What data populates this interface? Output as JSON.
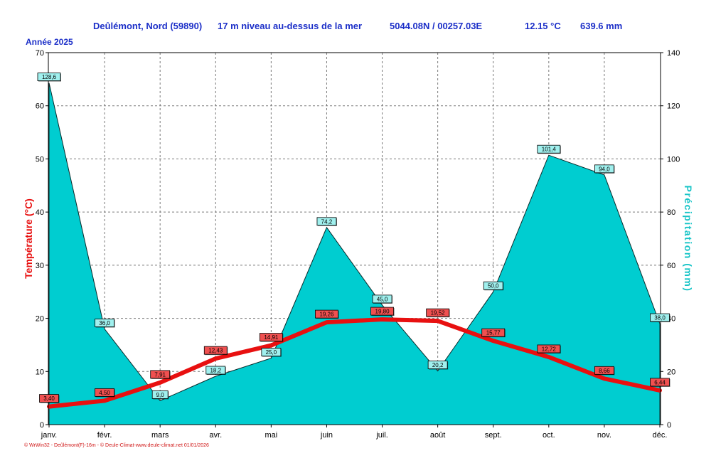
{
  "header": {
    "location": "Deûlémont, Nord (59890)",
    "altitude": "17 m niveau au-dessus de la mer",
    "coords": "5044.08N / 00257.03E",
    "avg_temp": "12.15 °C",
    "total_precip": "639.6 mm"
  },
  "year_label": "Année  2025",
  "footer": "© WrWin32 - Deûlémont(F)-16m - © Deule-Climat-www.deule-climat.net  01/01/2026",
  "colors": {
    "temperature": "#e81010",
    "precipitation": "#00cdd0",
    "header": "#1c2fc8"
  },
  "chart_data": {
    "type": "area",
    "categories": [
      "janv.",
      "févr.",
      "mars",
      "avr.",
      "mai",
      "juin",
      "juil.",
      "août",
      "sept.",
      "oct.",
      "nov.",
      "déc."
    ],
    "series": [
      {
        "name": "Précipitation",
        "type": "area",
        "axis": "right",
        "values": [
          128.6,
          36.0,
          9.0,
          18.2,
          25.0,
          74.2,
          45.0,
          20.2,
          50.0,
          101.4,
          94.0,
          38.0
        ],
        "labels": [
          "128,6",
          "36,0",
          "9,0",
          "18,2",
          "25,0",
          "74,2",
          "45,0",
          "20,2",
          "50,0",
          "101,4",
          "94,0",
          "38,0"
        ]
      },
      {
        "name": "Température",
        "type": "line",
        "axis": "left",
        "values": [
          3.4,
          4.5,
          7.91,
          12.43,
          14.91,
          19.26,
          19.8,
          19.52,
          15.77,
          12.72,
          8.66,
          6.44
        ],
        "labels": [
          "3,40",
          "4,50",
          "7,91",
          "12,43",
          "14,91",
          "19,26",
          "19,80",
          "19,52",
          "15,77",
          "12,72",
          "8,66",
          "6,44"
        ]
      }
    ],
    "ylabel_left": "Température  (°C)",
    "ylabel_right": "Précipitation  (mm)",
    "ylim_left": [
      0,
      70
    ],
    "ylim_right": [
      0,
      140
    ],
    "yticks_left": [
      0,
      10,
      20,
      30,
      40,
      50,
      60,
      70
    ],
    "yticks_right": [
      0,
      20,
      40,
      60,
      80,
      100,
      120,
      140
    ],
    "grid": true
  }
}
